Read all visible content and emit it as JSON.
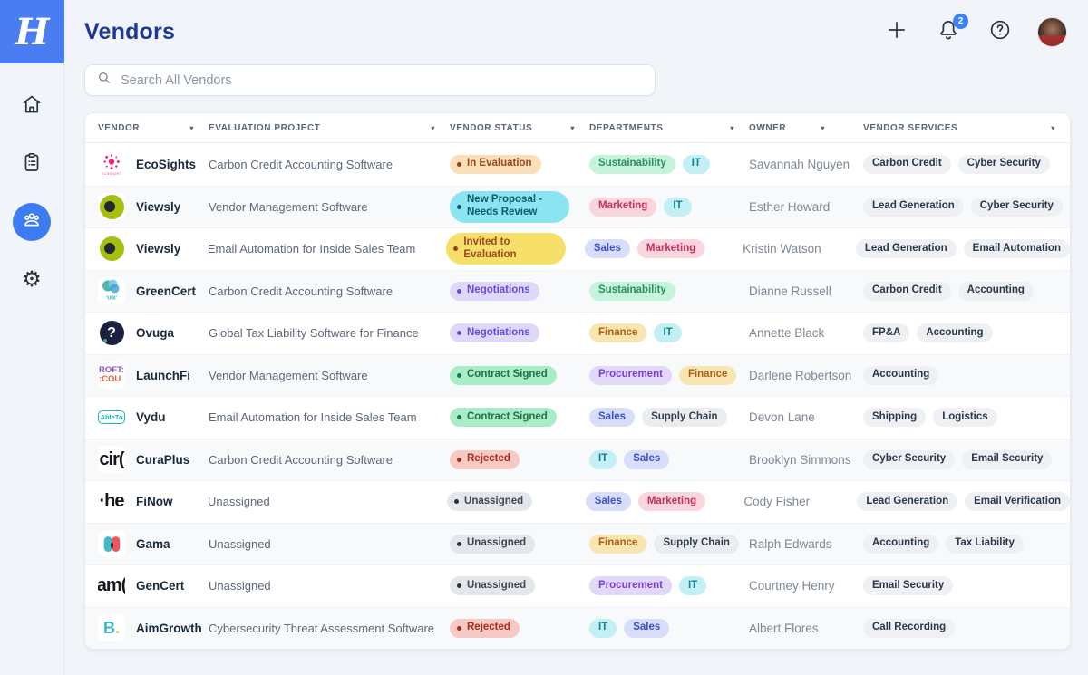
{
  "sidebar": {
    "logo_letter": "H",
    "items": [
      {
        "name": "home",
        "active": false
      },
      {
        "name": "projects",
        "active": false
      },
      {
        "name": "vendors",
        "active": true
      },
      {
        "name": "settings",
        "active": false
      }
    ]
  },
  "header": {
    "title": "Vendors",
    "notification_count": "2"
  },
  "search": {
    "placeholder": "Search All Vendors"
  },
  "table": {
    "columns": [
      {
        "label": "Vendor"
      },
      {
        "label": "Evaluation Project"
      },
      {
        "label": "Vendor Status"
      },
      {
        "label": "Departments"
      },
      {
        "label": "Owner"
      },
      {
        "label": "Vendor Services"
      }
    ],
    "rows": [
      {
        "vendor": "EcoSights",
        "logo": "ecosights",
        "project": "Carbon Credit Accounting Software",
        "status": {
          "label": "In Evaluation",
          "type": "in-evaluation"
        },
        "departments": [
          {
            "label": "Sustainability",
            "type": "sustainability"
          },
          {
            "label": "IT",
            "type": "it"
          }
        ],
        "owner": "Savannah Nguyen",
        "services": [
          "Carbon Credit",
          "Cyber Security"
        ]
      },
      {
        "vendor": "Viewsly",
        "logo": "viewsly",
        "project": "Vendor Management Software",
        "status": {
          "label": "New Proposal - Needs Review",
          "type": "new-proposal"
        },
        "departments": [
          {
            "label": "Marketing",
            "type": "marketing"
          },
          {
            "label": "IT",
            "type": "it"
          }
        ],
        "owner": "Esther Howard",
        "services": [
          "Lead Generation",
          "Cyber Security"
        ]
      },
      {
        "vendor": "Viewsly",
        "logo": "viewsly",
        "project": "Email Automation for Inside Sales Team",
        "status": {
          "label": "Invited to Evaluation",
          "type": "invited"
        },
        "departments": [
          {
            "label": "Sales",
            "type": "sales"
          },
          {
            "label": "Marketing",
            "type": "marketing"
          }
        ],
        "owner": "Kristin Watson",
        "services": [
          "Lead Generation",
          "Email Automation"
        ]
      },
      {
        "vendor": "GreenCert",
        "logo": "greencert",
        "project": "Carbon Credit Accounting Software",
        "status": {
          "label": "Negotiations",
          "type": "negotiations"
        },
        "departments": [
          {
            "label": "Sustainability",
            "type": "sustainability"
          }
        ],
        "owner": "Dianne Russell",
        "services": [
          "Carbon Credit",
          "Accounting"
        ]
      },
      {
        "vendor": "Ovuga",
        "logo": "ovuga",
        "project": "Global Tax Liability Software for Finance",
        "status": {
          "label": "Negotiations",
          "type": "negotiations"
        },
        "departments": [
          {
            "label": "Finance",
            "type": "finance"
          },
          {
            "label": "IT",
            "type": "it"
          }
        ],
        "owner": "Annette Black",
        "services": [
          "FP&A",
          "Accounting"
        ]
      },
      {
        "vendor": "LaunchFi",
        "logo": "launchfi",
        "project": "Vendor Management Software",
        "status": {
          "label": "Contract Signed",
          "type": "contract-signed"
        },
        "departments": [
          {
            "label": "Procurement",
            "type": "procurement"
          },
          {
            "label": "Finance",
            "type": "finance"
          }
        ],
        "owner": "Darlene Robertson",
        "services": [
          "Accounting"
        ]
      },
      {
        "vendor": "Vydu",
        "logo": "vydu",
        "project": "Email Automation for Inside Sales Team",
        "status": {
          "label": "Contract Signed",
          "type": "contract-signed"
        },
        "departments": [
          {
            "label": "Sales",
            "type": "sales"
          },
          {
            "label": "Supply Chain",
            "type": "supply-chain"
          }
        ],
        "owner": "Devon Lane",
        "services": [
          "Shipping",
          "Logistics"
        ]
      },
      {
        "vendor": "CuraPlus",
        "logo": "curaplus",
        "project": "Carbon Credit Accounting Software",
        "status": {
          "label": "Rejected",
          "type": "rejected"
        },
        "departments": [
          {
            "label": "IT",
            "type": "it"
          },
          {
            "label": "Sales",
            "type": "sales"
          }
        ],
        "owner": "Brooklyn Simmons",
        "services": [
          "Cyber Security",
          "Email Security"
        ]
      },
      {
        "vendor": "FiNow",
        "logo": "finow",
        "project": "Unassigned",
        "status": {
          "label": "Unassigned",
          "type": "unassigned"
        },
        "departments": [
          {
            "label": "Sales",
            "type": "sales"
          },
          {
            "label": "Marketing",
            "type": "marketing"
          }
        ],
        "owner": "Cody Fisher",
        "services": [
          "Lead Generation",
          "Email Verification"
        ]
      },
      {
        "vendor": "Gama",
        "logo": "gama",
        "project": "Unassigned",
        "status": {
          "label": "Unassigned",
          "type": "unassigned"
        },
        "departments": [
          {
            "label": "Finance",
            "type": "finance"
          },
          {
            "label": "Supply Chain",
            "type": "supply-chain"
          }
        ],
        "owner": "Ralph Edwards",
        "services": [
          "Accounting",
          "Tax Liability"
        ]
      },
      {
        "vendor": "GenCert",
        "logo": "gencert",
        "project": "Unassigned",
        "status": {
          "label": "Unassigned",
          "type": "unassigned"
        },
        "departments": [
          {
            "label": "Procurement",
            "type": "procurement"
          },
          {
            "label": "IT",
            "type": "it"
          }
        ],
        "owner": "Courtney Henry",
        "services": [
          "Email Security"
        ]
      },
      {
        "vendor": "AimGrowth",
        "logo": "aimgrowth",
        "project": "Cybersecurity Threat Assessment Software",
        "status": {
          "label": "Rejected",
          "type": "rejected"
        },
        "departments": [
          {
            "label": "IT",
            "type": "it"
          },
          {
            "label": "Sales",
            "type": "sales"
          }
        ],
        "owner": "Albert Flores",
        "services": [
          "Call Recording"
        ]
      }
    ]
  },
  "badge_styles": {
    "status": {
      "in-evaluation": {
        "bg": "#FADFB8",
        "text": "#9C4722",
        "dot": "#A03C1D"
      },
      "new-proposal": {
        "bg": "#8BE4F2",
        "text": "#0F5A66",
        "dot": "#0F5A66"
      },
      "invited": {
        "bg": "#F7E069",
        "text": "#9C4722",
        "dot": "#A03C1D"
      },
      "negotiations": {
        "bg": "#DFD9F9",
        "text": "#6A49DA",
        "dot": "#6A49DA"
      },
      "contract-signed": {
        "bg": "#A9EDC6",
        "text": "#1E7449",
        "dot": "#1E7449"
      },
      "rejected": {
        "bg": "#F7C9C4",
        "text": "#AB2A1C",
        "dot": "#AB2A1C"
      },
      "unassigned": {
        "bg": "#E3E6EB",
        "text": "#3E4651",
        "dot": "#2A3138"
      }
    },
    "departments": {
      "sustainability": {
        "bg": "#C5F3DB",
        "text": "#2B9060"
      },
      "it": {
        "bg": "#C3F0F5",
        "text": "#13818F"
      },
      "marketing": {
        "bg": "#F9D5DE",
        "text": "#C52F5E"
      },
      "sales": {
        "bg": "#D8DEFA",
        "text": "#3A50CE"
      },
      "finance": {
        "bg": "#F8E5AF",
        "text": "#AE5D17"
      },
      "procurement": {
        "bg": "#E2D8FA",
        "text": "#7A3ED2"
      },
      "supply-chain": {
        "bg": "#EAEDF0",
        "text": "#333E4A"
      }
    },
    "service": {
      "bg": "#EEF0F4",
      "text": "#2A3747"
    }
  },
  "colors": {
    "accent_blue": "#3D7BF0",
    "brand_blue": "#4A7DF2",
    "title_blue": "#1C3997",
    "page_bg": "#F1F4F9"
  }
}
